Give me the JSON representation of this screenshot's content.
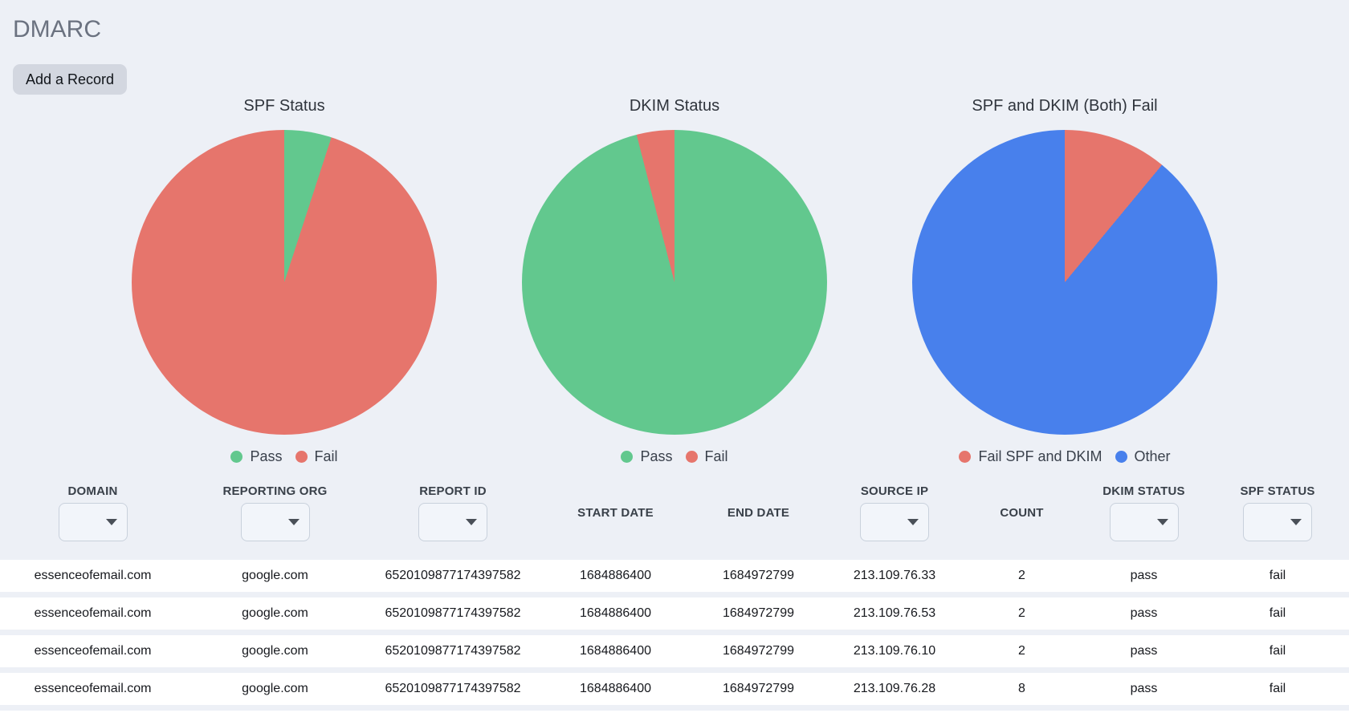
{
  "header": {
    "title": "DMARC",
    "add_record_button": "Add a Record"
  },
  "chart_data": [
    {
      "type": "pie",
      "title": "SPF Status",
      "labels": [
        "Pass",
        "Fail"
      ],
      "values": [
        5,
        95
      ],
      "unit": "percent",
      "colors": [
        "#62c88e",
        "#e6756c"
      ],
      "legend_position": "bottom"
    },
    {
      "type": "pie",
      "title": "DKIM Status",
      "labels": [
        "Pass",
        "Fail"
      ],
      "values": [
        96,
        4
      ],
      "unit": "percent",
      "colors": [
        "#62c88e",
        "#e6756c"
      ],
      "legend_position": "bottom"
    },
    {
      "type": "pie",
      "title": "SPF and DKIM (Both) Fail",
      "labels": [
        "Fail SPF and DKIM",
        "Other"
      ],
      "values": [
        11,
        89
      ],
      "unit": "percent",
      "colors": [
        "#e6756c",
        "#4880ec"
      ],
      "legend_position": "bottom"
    }
  ],
  "table": {
    "columns": [
      {
        "label": "DOMAIN",
        "has_filter": true,
        "filter_value": ""
      },
      {
        "label": "REPORTING ORG",
        "has_filter": true,
        "filter_value": ""
      },
      {
        "label": "REPORT ID",
        "has_filter": true,
        "filter_value": ""
      },
      {
        "label": "START DATE",
        "has_filter": false
      },
      {
        "label": "END DATE",
        "has_filter": false
      },
      {
        "label": "SOURCE IP",
        "has_filter": true,
        "filter_value": ""
      },
      {
        "label": "COUNT",
        "has_filter": false
      },
      {
        "label": "DKIM STATUS",
        "has_filter": true,
        "filter_value": ""
      },
      {
        "label": "SPF STATUS",
        "has_filter": true,
        "filter_value": ""
      }
    ],
    "rows": [
      {
        "domain": "essenceofemail.com",
        "reporting_org": "google.com",
        "report_id": "6520109877174397582",
        "start_date": "1684886400",
        "end_date": "1684972799",
        "source_ip": "213.109.76.33",
        "count": "2",
        "dkim_status": "pass",
        "spf_status": "fail"
      },
      {
        "domain": "essenceofemail.com",
        "reporting_org": "google.com",
        "report_id": "6520109877174397582",
        "start_date": "1684886400",
        "end_date": "1684972799",
        "source_ip": "213.109.76.53",
        "count": "2",
        "dkim_status": "pass",
        "spf_status": "fail"
      },
      {
        "domain": "essenceofemail.com",
        "reporting_org": "google.com",
        "report_id": "6520109877174397582",
        "start_date": "1684886400",
        "end_date": "1684972799",
        "source_ip": "213.109.76.10",
        "count": "2",
        "dkim_status": "pass",
        "spf_status": "fail"
      },
      {
        "domain": "essenceofemail.com",
        "reporting_org": "google.com",
        "report_id": "6520109877174397582",
        "start_date": "1684886400",
        "end_date": "1684972799",
        "source_ip": "213.109.76.28",
        "count": "8",
        "dkim_status": "pass",
        "spf_status": "fail"
      }
    ]
  },
  "theme": {
    "background": "#edf0f6",
    "row_background": "#ffffff",
    "title_color": "#6b7280",
    "header_text_color": "#394049",
    "cell_text_color": "#16181d",
    "button_background": "#d3d7e0",
    "pass_green": "#62c88e",
    "fail_red": "#e6756c",
    "other_blue": "#4880ec"
  }
}
